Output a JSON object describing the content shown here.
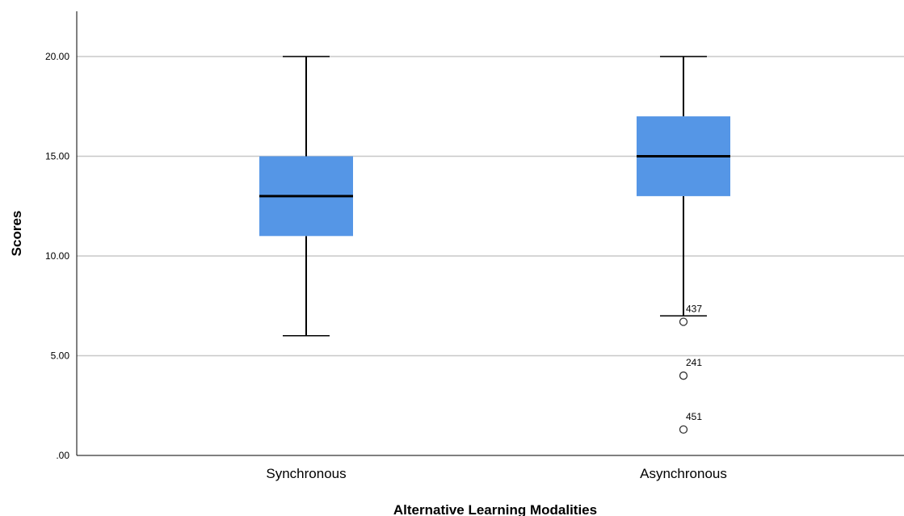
{
  "chart_data": {
    "type": "boxplot",
    "xlabel": "Alternative Learning Modalities",
    "ylabel": "Scores",
    "ylim": [
      0,
      22
    ],
    "yticks": [
      0,
      5,
      10,
      15,
      20
    ],
    "ytick_labels": [
      ".00",
      "5.00",
      "10.00",
      "15.00",
      "20.00"
    ],
    "grid": "horizontal",
    "box_color": "#5596E6",
    "categories": [
      "Synchronous",
      "Asynchronous"
    ],
    "boxes": [
      {
        "category": "Synchronous",
        "whisker_low": 6,
        "q1": 11,
        "median": 13,
        "q3": 15,
        "whisker_high": 20,
        "outliers": []
      },
      {
        "category": "Asynchronous",
        "whisker_low": 7,
        "q1": 13,
        "median": 15,
        "q3": 17,
        "whisker_high": 20,
        "outliers": [
          {
            "label": "437",
            "value": 6.7
          },
          {
            "label": "241",
            "value": 4
          },
          {
            "label": "451",
            "value": 1.3
          }
        ]
      }
    ]
  }
}
